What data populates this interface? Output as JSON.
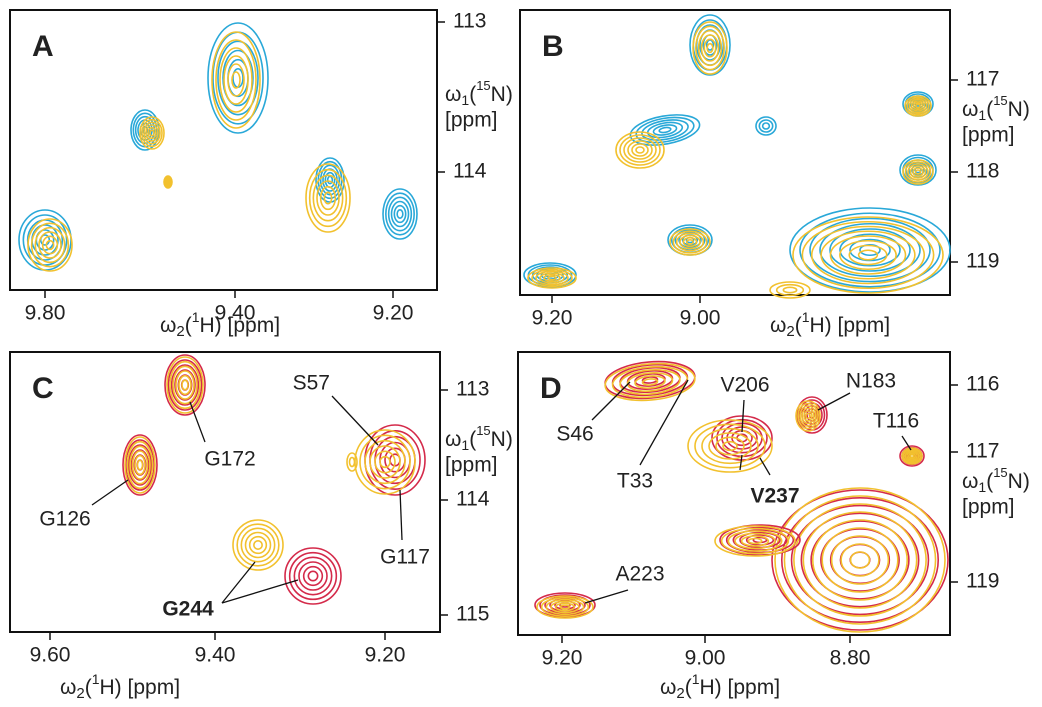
{
  "panels": [
    {
      "letter": "A",
      "y_ticks": [
        "113",
        "114"
      ],
      "x_ticks": [
        "9.80",
        "9.40",
        "9.20"
      ],
      "x_axis": {
        "symbol": "ω",
        "sub": "2",
        "open": "(",
        "sup": "1",
        "close": "H) [ppm]"
      },
      "y_axis": {
        "symbol": "ω",
        "sub": "1",
        "open": "(",
        "sup": "15",
        "close": "N)",
        "unit": "[ppm]"
      },
      "peaks": []
    },
    {
      "letter": "B",
      "y_ticks": [
        "117",
        "118",
        "119"
      ],
      "x_ticks": [
        "9.20",
        "9.00"
      ],
      "x_axis": {
        "symbol": "ω",
        "sub": "2",
        "open": "(",
        "sup": "1",
        "close": "H) [ppm]"
      },
      "y_axis": {
        "symbol": "ω",
        "sub": "1",
        "open": "(",
        "sup": "15",
        "close": "N)",
        "unit": "[ppm]"
      },
      "peaks": []
    },
    {
      "letter": "C",
      "y_ticks": [
        "113",
        "114",
        "115"
      ],
      "x_ticks": [
        "9.60",
        "9.40",
        "9.20"
      ],
      "x_axis": {
        "symbol": "ω",
        "sub": "2",
        "open": "(",
        "sup": "1",
        "close": "H) [ppm]"
      },
      "y_axis": {
        "symbol": "ω",
        "sub": "1",
        "open": "(",
        "sup": "15",
        "close": "N)",
        "unit": "[ppm]"
      },
      "peaks": [
        "S57",
        "G172",
        "G126",
        "G117",
        "G244"
      ]
    },
    {
      "letter": "D",
      "y_ticks": [
        "116",
        "117",
        "119"
      ],
      "x_ticks": [
        "9.20",
        "9.00",
        "8.80"
      ],
      "x_axis": {
        "symbol": "ω",
        "sub": "2",
        "open": "(",
        "sup": "1",
        "close": "H) [ppm]"
      },
      "y_axis": {
        "symbol": "ω",
        "sub": "1",
        "open": "(",
        "sup": "15",
        "close": "N)",
        "unit": "[ppm]"
      },
      "peaks": [
        "S46",
        "T33",
        "V206",
        "N183",
        "T116",
        "V237",
        "A223"
      ]
    }
  ]
}
